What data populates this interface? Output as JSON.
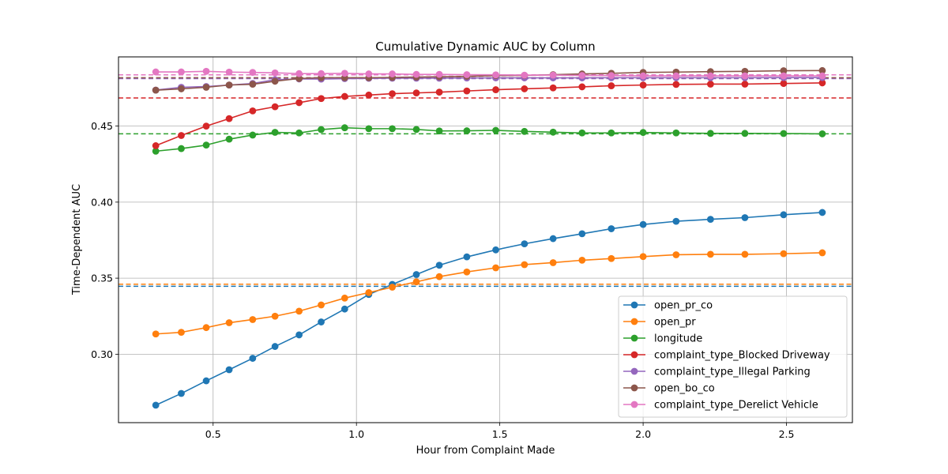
{
  "chart_data": {
    "type": "line",
    "title": "Cumulative Dynamic AUC by Column",
    "xlabel": "Hour from Complaint Made",
    "ylabel": "Time-Dependent AUC",
    "xlim": [
      0.17,
      2.73
    ],
    "ylim": [
      0.255,
      0.4955
    ],
    "xticks": [
      0.5,
      1.0,
      1.5,
      2.0,
      2.5
    ],
    "xtick_labels": [
      "0.5",
      "1.0",
      "1.5",
      "2.0",
      "2.5"
    ],
    "yticks": [
      0.3,
      0.35,
      0.4,
      0.45
    ],
    "ytick_labels": [
      "0.30",
      "0.35",
      "0.40",
      "0.45"
    ],
    "grid": true,
    "legend_position": "lower-right",
    "x": [
      0.3,
      0.389,
      0.476,
      0.556,
      0.638,
      0.716,
      0.8,
      0.877,
      0.959,
      1.043,
      1.125,
      1.209,
      1.289,
      1.385,
      1.486,
      1.586,
      1.686,
      1.787,
      1.889,
      2.0,
      2.115,
      2.235,
      2.355,
      2.49,
      2.625
    ],
    "series": [
      {
        "name": "open_pr_co",
        "color": "#1f77b4",
        "mean": 0.3447,
        "values": [
          0.2665,
          0.2742,
          0.2825,
          0.2898,
          0.2973,
          0.3051,
          0.3127,
          0.3212,
          0.3297,
          0.3393,
          0.3459,
          0.3524,
          0.3585,
          0.364,
          0.3686,
          0.3726,
          0.376,
          0.3792,
          0.3825,
          0.3853,
          0.3874,
          0.3887,
          0.3898,
          0.3917,
          0.3932
        ]
      },
      {
        "name": "open_pr",
        "color": "#ff7f0e",
        "mean": 0.346,
        "values": [
          0.3133,
          0.3144,
          0.3175,
          0.3207,
          0.3228,
          0.325,
          0.3283,
          0.3324,
          0.3369,
          0.3405,
          0.3441,
          0.3476,
          0.351,
          0.3541,
          0.3568,
          0.3589,
          0.3602,
          0.3618,
          0.3629,
          0.3642,
          0.3654,
          0.3657,
          0.3657,
          0.3661,
          0.3667
        ]
      },
      {
        "name": "longitude",
        "color": "#2ca02c",
        "mean": 0.4449,
        "values": [
          0.4335,
          0.4352,
          0.4375,
          0.4414,
          0.4441,
          0.4459,
          0.4455,
          0.4477,
          0.4489,
          0.4483,
          0.4483,
          0.4478,
          0.4468,
          0.4469,
          0.4472,
          0.4465,
          0.446,
          0.4455,
          0.4455,
          0.4458,
          0.4455,
          0.4452,
          0.4452,
          0.4451,
          0.4449
        ]
      },
      {
        "name": "complaint_type_Blocked Driveway",
        "color": "#d62728",
        "mean": 0.4685,
        "values": [
          0.4371,
          0.4438,
          0.45,
          0.4549,
          0.46,
          0.4627,
          0.4654,
          0.4681,
          0.4695,
          0.4704,
          0.4713,
          0.4718,
          0.4723,
          0.4731,
          0.4739,
          0.4745,
          0.4751,
          0.4758,
          0.4765,
          0.477,
          0.4774,
          0.4776,
          0.4776,
          0.478,
          0.4784
        ]
      },
      {
        "name": "complaint_type_Illegal Parking",
        "color": "#9467bd",
        "mean": 0.4812,
        "values": [
          0.4737,
          0.4755,
          0.476,
          0.477,
          0.478,
          0.4805,
          0.481,
          0.4809,
          0.4812,
          0.4814,
          0.4815,
          0.4815,
          0.4815,
          0.4816,
          0.4817,
          0.4817,
          0.4817,
          0.4817,
          0.4818,
          0.4818,
          0.4818,
          0.4818,
          0.4818,
          0.4819,
          0.4819
        ]
      },
      {
        "name": "open_bo_co",
        "color": "#8c564b",
        "mean": 0.4818,
        "values": [
          0.4736,
          0.4745,
          0.4755,
          0.477,
          0.4775,
          0.4795,
          0.4813,
          0.4818,
          0.4818,
          0.4818,
          0.482,
          0.4822,
          0.4824,
          0.4827,
          0.4832,
          0.4833,
          0.4838,
          0.4843,
          0.4847,
          0.4853,
          0.4855,
          0.4858,
          0.486,
          0.4864,
          0.4865
        ]
      },
      {
        "name": "complaint_type_Derelict Vehicle",
        "color": "#e377c2",
        "mean": 0.4837,
        "values": [
          0.4856,
          0.4856,
          0.486,
          0.4855,
          0.4853,
          0.485,
          0.4845,
          0.4845,
          0.4847,
          0.4843,
          0.4843,
          0.484,
          0.484,
          0.4838,
          0.4837,
          0.4835,
          0.4835,
          0.4833,
          0.4832,
          0.483,
          0.483,
          0.483,
          0.483,
          0.483,
          0.483
        ]
      }
    ]
  }
}
